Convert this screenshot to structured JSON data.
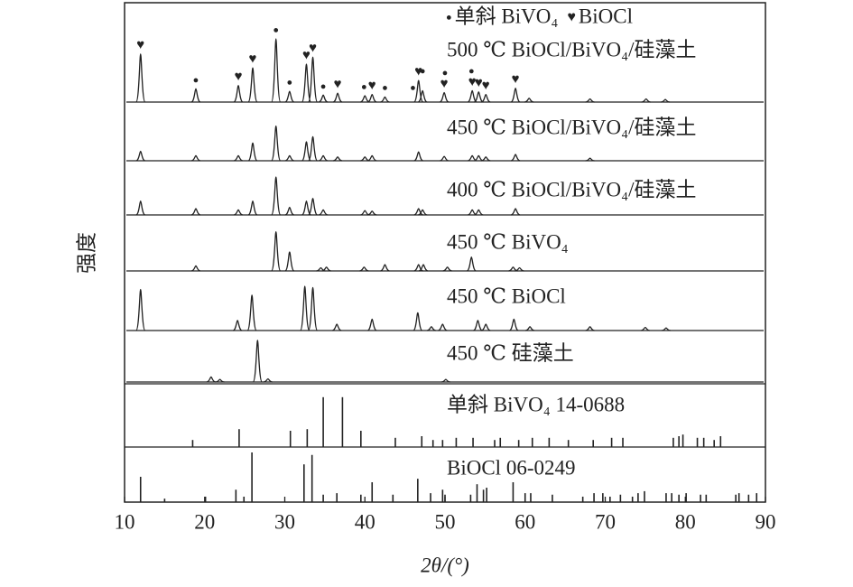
{
  "chart_data": {
    "type": "xrd",
    "xlabel": "2θ/(°)",
    "ylabel": "强度",
    "xlim": [
      10,
      90
    ],
    "xticks": [
      10,
      20,
      30,
      40,
      50,
      60,
      70,
      80,
      90
    ],
    "ylim": [
      0,
      100
    ],
    "markers": [
      {
        "name": "单斜 BiVO₄",
        "symbol": "●",
        "x": [
          18.9,
          28.9,
          30.6,
          34.8,
          39.9,
          42.5,
          46.0,
          47.2,
          50.0,
          53.3
        ]
      },
      {
        "name": "BiOCl",
        "symbol": "♥",
        "x": [
          12.0,
          24.2,
          26.0,
          32.7,
          33.5,
          36.6,
          40.9,
          46.7,
          49.9,
          53.4,
          54.2,
          55.1,
          58.8
        ]
      }
    ],
    "series": [
      {
        "name": "500 ℃ BiOCl/BiVO₄/硅藻土",
        "kind": "trace",
        "color": "#222",
        "x": [
          12.0,
          18.9,
          24.2,
          26.0,
          28.9,
          30.6,
          32.7,
          33.5,
          34.8,
          36.6,
          40.0,
          40.9,
          42.5,
          46.7,
          47.2,
          49.9,
          53.4,
          54.2,
          55.1,
          58.8,
          60.5,
          68.1,
          75.1,
          77.5
        ],
        "values": [
          76,
          21,
          26,
          54,
          100,
          17,
          60,
          71,
          11,
          14,
          10,
          12,
          8,
          34,
          18,
          15,
          18,
          16,
          12,
          22,
          6,
          5,
          5,
          4
        ]
      },
      {
        "name": "450 ℃ BiOCl/BiVO₄/硅藻土",
        "kind": "trace",
        "color": "#222",
        "x": [
          12.0,
          18.9,
          24.2,
          26.0,
          28.9,
          30.6,
          32.7,
          33.5,
          34.8,
          36.6,
          40.0,
          40.9,
          46.7,
          49.9,
          53.4,
          54.2,
          55.1,
          58.8,
          68.1
        ],
        "values": [
          15,
          8,
          8,
          28,
          55,
          8,
          30,
          38,
          8,
          6,
          6,
          8,
          14,
          7,
          8,
          8,
          6,
          10,
          4
        ]
      },
      {
        "name": "400 ℃ BiOCl/BiVO₄/硅藻土",
        "kind": "trace",
        "color": "#222",
        "x": [
          12.0,
          18.9,
          24.2,
          26.0,
          28.9,
          30.6,
          32.7,
          33.5,
          34.8,
          40.0,
          40.9,
          46.7,
          47.2,
          53.4,
          54.2,
          58.8
        ],
        "values": [
          22,
          10,
          8,
          22,
          60,
          12,
          22,
          26,
          8,
          7,
          6,
          10,
          8,
          8,
          8,
          10
        ]
      },
      {
        "name": "450 ℃ BiVO₄",
        "kind": "trace",
        "color": "#222",
        "x": [
          18.9,
          28.9,
          30.6,
          34.5,
          35.2,
          39.9,
          42.5,
          46.7,
          47.3,
          50.3,
          53.3,
          58.5,
          59.3
        ],
        "values": [
          8,
          62,
          30,
          5,
          6,
          6,
          10,
          10,
          10,
          6,
          22,
          6,
          5
        ]
      },
      {
        "name": "450 ℃ BiOCl",
        "kind": "trace",
        "color": "#222",
        "x": [
          12.0,
          24.1,
          25.9,
          32.5,
          33.5,
          36.5,
          40.9,
          46.6,
          48.3,
          49.7,
          54.1,
          55.1,
          58.6,
          60.6,
          68.1,
          75.0,
          77.6
        ],
        "values": [
          65,
          16,
          56,
          70,
          68,
          10,
          18,
          28,
          6,
          10,
          16,
          10,
          18,
          6,
          6,
          5,
          4
        ]
      },
      {
        "name": "450 ℃ 硅藻土",
        "kind": "trace",
        "color": "#222",
        "x": [
          20.8,
          21.9,
          26.6,
          27.9,
          50.1
        ],
        "values": [
          8,
          4,
          66,
          5,
          4
        ]
      },
      {
        "name": "单斜 BiVO₄ 14-0688",
        "kind": "sticks",
        "color": "#222",
        "x": [
          18.5,
          24.3,
          30.7,
          32.8,
          34.8,
          37.2,
          39.5,
          43.8,
          47.1,
          48.5,
          49.7,
          51.4,
          53.5,
          56.2,
          56.9,
          59.2,
          60.9,
          63.0,
          65.4,
          68.5,
          70.8,
          72.2,
          78.5,
          79.2,
          79.7,
          81.5,
          82.3,
          83.6,
          84.4
        ],
        "values": [
          13,
          33,
          30,
          33,
          92,
          92,
          30,
          17,
          20,
          13,
          13,
          17,
          17,
          13,
          17,
          13,
          17,
          17,
          13,
          13,
          17,
          17,
          17,
          20,
          23,
          17,
          17,
          13,
          20
        ]
      },
      {
        "name": "BiOCl 06-0249",
        "kind": "sticks",
        "color": "#222",
        "x": [
          12.0,
          15.0,
          20.1,
          23.9,
          24.9,
          25.9,
          32.4,
          33.4,
          34.8,
          36.5,
          39.5,
          40.9,
          43.5,
          46.6,
          48.2,
          49.7,
          50.0,
          53.2,
          54.0,
          54.8,
          55.2,
          58.5,
          60.0,
          60.7,
          63.4,
          67.2,
          68.6,
          69.7,
          70.6,
          71.9,
          73.4,
          74.1,
          74.9,
          77.6,
          78.3,
          79.2,
          80.1,
          81.9,
          82.6,
          86.3,
          86.7,
          87.9,
          88.9
        ],
        "values": [
          51,
          7,
          11,
          25,
          11,
          100,
          76,
          95,
          15,
          18,
          15,
          40,
          15,
          47,
          18,
          25,
          15,
          15,
          36,
          25,
          29,
          40,
          18,
          18,
          15,
          11,
          18,
          18,
          11,
          15,
          11,
          18,
          22,
          18,
          18,
          15,
          18,
          15,
          15,
          15,
          18,
          15,
          18
        ]
      }
    ]
  }
}
